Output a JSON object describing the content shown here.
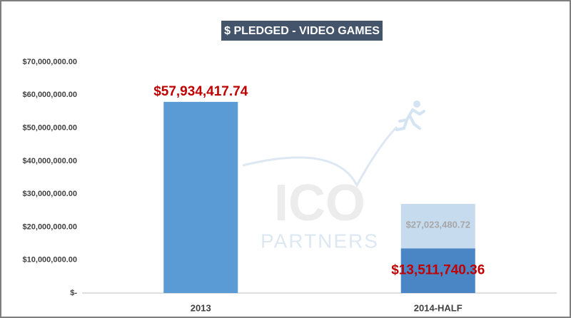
{
  "chart_data": {
    "type": "bar",
    "title": "$ PLEDGED - VIDEO GAMES",
    "categories": [
      "2013",
      "2014-HALF"
    ],
    "series": [
      {
        "color": "#5b9bd5",
        "values": [
          57934417.74,
          13511740.36
        ],
        "value_labels": [
          "$57,934,417.74",
          "$13,511,740.36"
        ],
        "colors": [
          "#5b9bd5",
          "#4a85c5"
        ],
        "label_color": "#c00000"
      },
      {
        "color": "#c7dbee",
        "values": [
          null,
          27023480.72
        ],
        "value_labels": [
          null,
          "$27,023,480.72"
        ],
        "label_color": "#a6a6a6"
      }
    ],
    "ylim": [
      0,
      70000000
    ],
    "yticks": [
      {
        "value": 0,
        "label": "$-"
      },
      {
        "value": 10000000,
        "label": "$10,000,000.00"
      },
      {
        "value": 20000000,
        "label": "$20,000,000.00"
      },
      {
        "value": 30000000,
        "label": "$30,000,000.00"
      },
      {
        "value": 40000000,
        "label": "$40,000,000.00"
      },
      {
        "value": 50000000,
        "label": "$50,000,000.00"
      },
      {
        "value": 60000000,
        "label": "$60,000,000.00"
      },
      {
        "value": 70000000,
        "label": "$70,000,000.00"
      }
    ],
    "watermark": {
      "line1": "ICO",
      "line2": "PARTNERS"
    }
  }
}
